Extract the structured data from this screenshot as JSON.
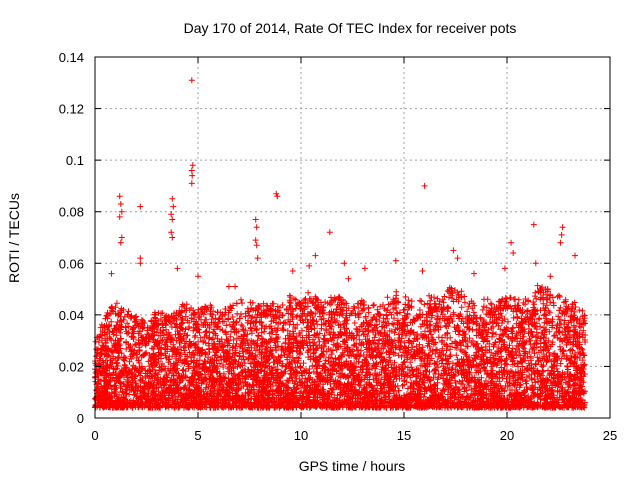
{
  "chart_data": {
    "type": "scatter",
    "title": "Day 170 of 2014, Rate Of TEC Index for receiver pots",
    "xlabel": "GPS time / hours",
    "ylabel": "ROTI / TECUs",
    "xlim": [
      0,
      25
    ],
    "ylim": [
      0,
      0.14
    ],
    "grid": true,
    "marker": "+",
    "x_ticks": [
      {
        "value": 0,
        "label": "0"
      },
      {
        "value": 5,
        "label": "5"
      },
      {
        "value": 10,
        "label": "10"
      },
      {
        "value": 15,
        "label": "15"
      },
      {
        "value": 20,
        "label": "20"
      },
      {
        "value": 25,
        "label": "25"
      }
    ],
    "y_ticks": [
      {
        "value": 0,
        "label": "0"
      },
      {
        "value": 0.02,
        "label": "0.02"
      },
      {
        "value": 0.04,
        "label": "0.04"
      },
      {
        "value": 0.06,
        "label": "0.06"
      },
      {
        "value": 0.08,
        "label": "0.08"
      },
      {
        "value": 0.1,
        "label": "0.1"
      },
      {
        "value": 0.12,
        "label": "0.12"
      },
      {
        "value": 0.14,
        "label": "0.14"
      }
    ],
    "series": [
      {
        "name": "pots",
        "color": "#ff0000",
        "outliers": [
          [
            4.7,
            0.131
          ],
          [
            4.75,
            0.098
          ],
          [
            4.7,
            0.096
          ],
          [
            4.72,
            0.094
          ],
          [
            4.7,
            0.091
          ],
          [
            1.2,
            0.086
          ],
          [
            1.25,
            0.083
          ],
          [
            1.3,
            0.08
          ],
          [
            1.2,
            0.078
          ],
          [
            1.3,
            0.07
          ],
          [
            1.25,
            0.068
          ],
          [
            2.2,
            0.082
          ],
          [
            3.75,
            0.085
          ],
          [
            3.8,
            0.082
          ],
          [
            3.7,
            0.079
          ],
          [
            3.75,
            0.077
          ],
          [
            3.7,
            0.072
          ],
          [
            3.75,
            0.07
          ],
          [
            7.8,
            0.077
          ],
          [
            7.85,
            0.074
          ],
          [
            7.8,
            0.069
          ],
          [
            7.85,
            0.067
          ],
          [
            7.9,
            0.062
          ],
          [
            8.8,
            0.087
          ],
          [
            8.85,
            0.086
          ],
          [
            11.4,
            0.072
          ],
          [
            10.7,
            0.063
          ],
          [
            16.0,
            0.09
          ],
          [
            21.3,
            0.075
          ],
          [
            22.7,
            0.074
          ],
          [
            22.65,
            0.071
          ],
          [
            22.6,
            0.068
          ],
          [
            20.2,
            0.068
          ],
          [
            20.3,
            0.064
          ],
          [
            17.4,
            0.065
          ],
          [
            2.2,
            0.062
          ],
          [
            2.2,
            0.06
          ],
          [
            4.0,
            0.058
          ],
          [
            9.6,
            0.057
          ],
          [
            12.1,
            0.06
          ],
          [
            14.6,
            0.061
          ],
          [
            17.6,
            0.062
          ],
          [
            19.9,
            0.058
          ],
          [
            21.4,
            0.06
          ],
          [
            23.3,
            0.063
          ],
          [
            0.8,
            0.056
          ],
          [
            6.5,
            0.051
          ],
          [
            6.8,
            0.051
          ],
          [
            13.1,
            0.058
          ],
          [
            15.9,
            0.057
          ],
          [
            18.4,
            0.056
          ],
          [
            22.1,
            0.055
          ],
          [
            10.4,
            0.059
          ],
          [
            12.3,
            0.054
          ],
          [
            5.0,
            0.055
          ]
        ],
        "density": [
          [
            0.0,
            0.03
          ],
          [
            0.5,
            0.04
          ],
          [
            1.0,
            0.045
          ],
          [
            1.5,
            0.042
          ],
          [
            2.0,
            0.04
          ],
          [
            2.5,
            0.038
          ],
          [
            3.0,
            0.042
          ],
          [
            3.5,
            0.04
          ],
          [
            4.0,
            0.043
          ],
          [
            4.5,
            0.045
          ],
          [
            5.0,
            0.042
          ],
          [
            5.5,
            0.045
          ],
          [
            6.0,
            0.041
          ],
          [
            6.5,
            0.044
          ],
          [
            7.0,
            0.046
          ],
          [
            7.5,
            0.045
          ],
          [
            8.0,
            0.044
          ],
          [
            8.5,
            0.045
          ],
          [
            9.0,
            0.043
          ],
          [
            9.5,
            0.048
          ],
          [
            10.0,
            0.046
          ],
          [
            10.5,
            0.05
          ],
          [
            11.0,
            0.045
          ],
          [
            11.5,
            0.047
          ],
          [
            12.0,
            0.048
          ],
          [
            12.5,
            0.043
          ],
          [
            13.0,
            0.046
          ],
          [
            13.5,
            0.044
          ],
          [
            14.0,
            0.045
          ],
          [
            14.5,
            0.05
          ],
          [
            15.0,
            0.048
          ],
          [
            15.5,
            0.046
          ],
          [
            16.0,
            0.047
          ],
          [
            16.5,
            0.048
          ],
          [
            17.0,
            0.05
          ],
          [
            17.5,
            0.052
          ],
          [
            18.0,
            0.047
          ],
          [
            18.5,
            0.045
          ],
          [
            19.0,
            0.047
          ],
          [
            19.5,
            0.045
          ],
          [
            20.0,
            0.048
          ],
          [
            20.5,
            0.046
          ],
          [
            21.0,
            0.048
          ],
          [
            21.5,
            0.052
          ],
          [
            22.0,
            0.05
          ],
          [
            22.5,
            0.048
          ],
          [
            23.0,
            0.046
          ],
          [
            23.5,
            0.044
          ],
          [
            23.8,
            0.04
          ]
        ]
      }
    ]
  }
}
